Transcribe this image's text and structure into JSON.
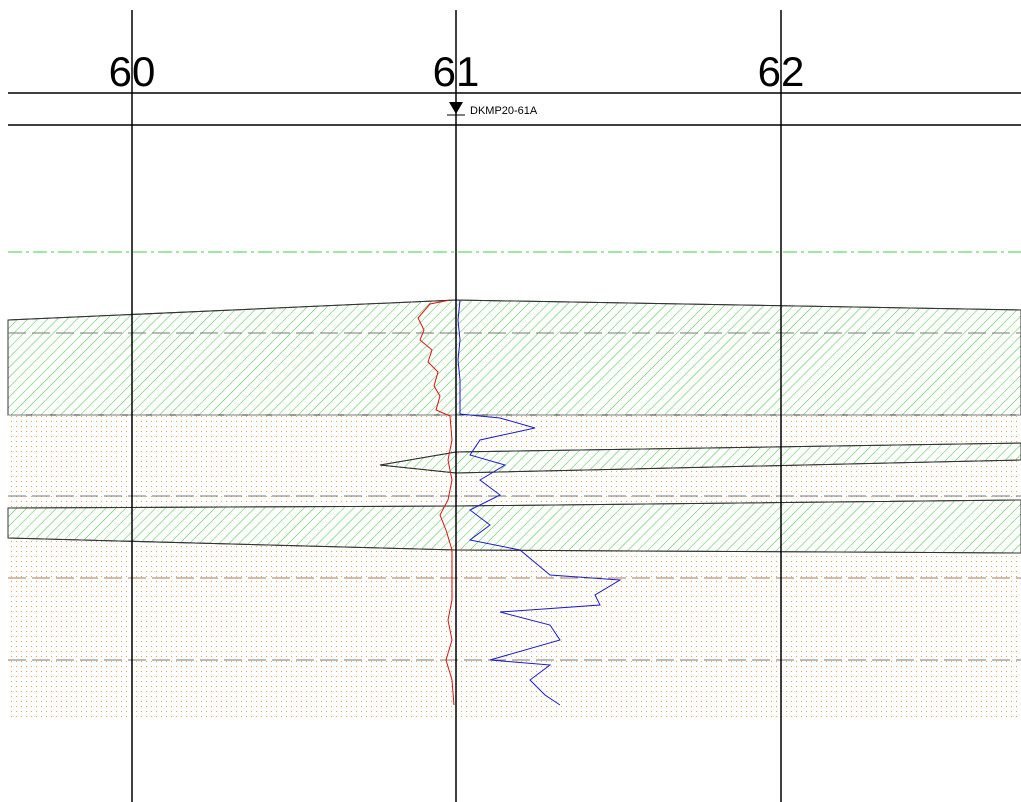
{
  "stations": [
    "60",
    "61",
    "62"
  ],
  "well": {
    "label": "DKMP20-61A"
  }
}
